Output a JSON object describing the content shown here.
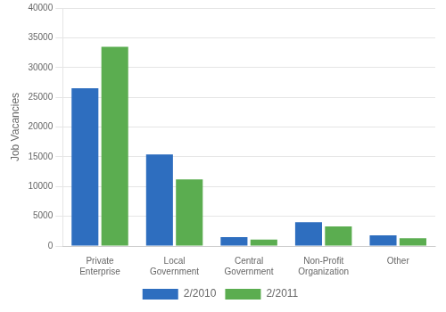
{
  "chart_data": {
    "type": "bar",
    "categories": [
      "Private\nEnterprise",
      "Local\nGovernment",
      "Central\nGovernment",
      "Non-Profit\nOrganization",
      "Other"
    ],
    "series": [
      {
        "name": "2/2010",
        "color": "#2E6EBF",
        "values": [
          26500,
          15400,
          1500,
          4000,
          1800
        ]
      },
      {
        "name": "2/2011",
        "color": "#5BAD50",
        "values": [
          33500,
          11200,
          1100,
          3300,
          1300
        ]
      }
    ],
    "ylabel": "Job Vacancies",
    "ylim": [
      0,
      40000
    ],
    "yticks": [
      0,
      5000,
      10000,
      15000,
      20000,
      25000,
      30000,
      35000,
      40000
    ],
    "grid": true,
    "legend": "bottom"
  }
}
